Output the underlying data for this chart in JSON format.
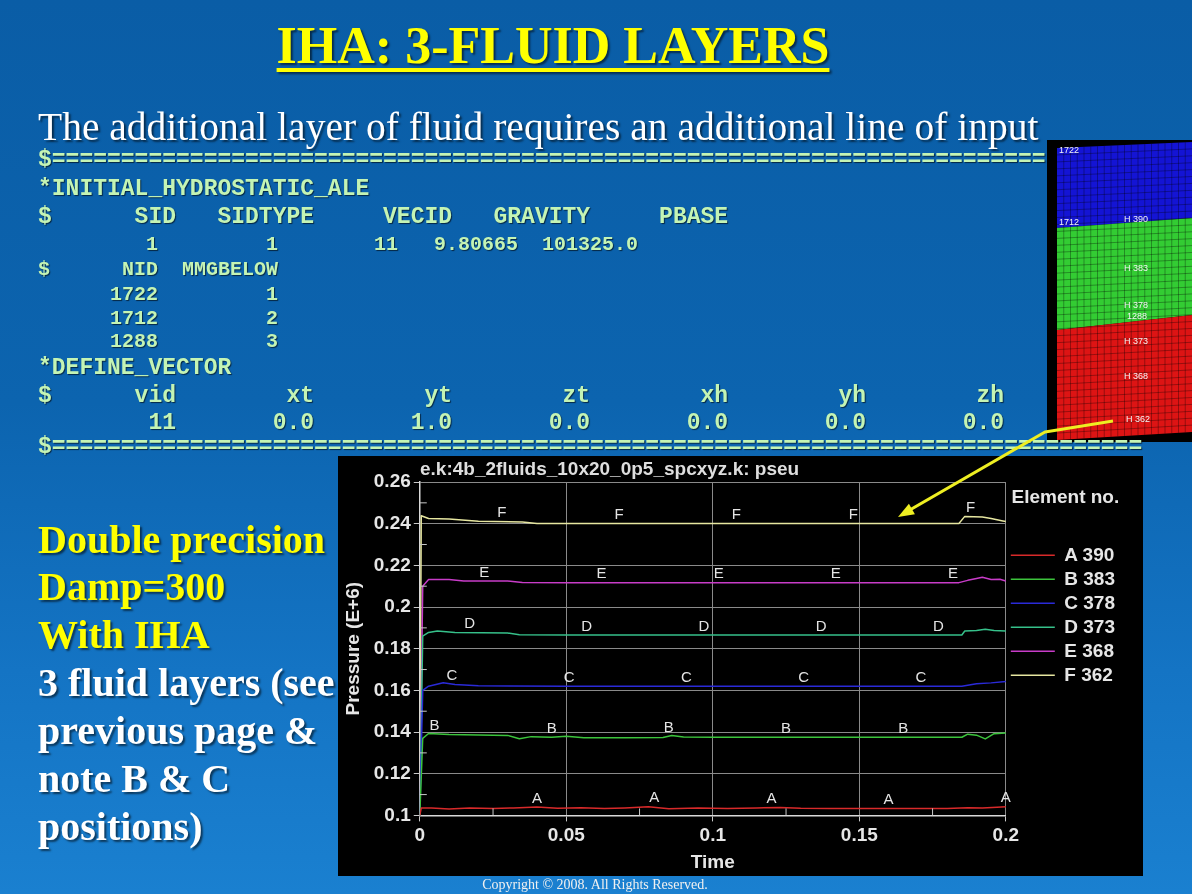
{
  "chart_data": {
    "type": "line",
    "title": "IHA: 3-FLUID LAYERS",
    "subtitle": "The additional layer of fluid requires an additional line of input",
    "xlabel": "Time",
    "ylabel": "Pressure (E+6)",
    "legend_title": "Element no.",
    "legend": "top right",
    "grid": true,
    "line_style": "solid",
    "xlim": [
      0,
      0.2
    ],
    "xticks": [
      0,
      {
        "value": 0.025,
        "label": null
      },
      0.05,
      {
        "value": 0.075,
        "label": null
      },
      0.1,
      {
        "value": 0.125,
        "label": null
      },
      0.15,
      {
        "value": 0.175,
        "label": null
      },
      0.2
    ],
    "ylim": [
      0.1,
      0.26
    ],
    "yticks": [
      0.1,
      {
        "value": 0.11,
        "label": null
      },
      0.12,
      {
        "value": 0.13,
        "label": null
      },
      0.14,
      {
        "value": 0.15,
        "label": null
      },
      0.16,
      {
        "value": 0.17,
        "label": null
      },
      0.18,
      {
        "value": 0.19,
        "label": null
      },
      0.2,
      {
        "value": 0.21,
        "label": null
      },
      0.22,
      {
        "value": 0.23,
        "label": null
      },
      0.24,
      {
        "value": 0.25,
        "label": null
      },
      0.26
    ],
    "series": [
      {
        "name": "A 390",
        "color": "#d82a2a",
        "x": [
          0,
          0.0005,
          0.004,
          0.01,
          0.017,
          0.025,
          0.032,
          0.04,
          0.047,
          0.055,
          0.063,
          0.07,
          0.078,
          0.085,
          0.095,
          0.105,
          0.115,
          0.123,
          0.13,
          0.14,
          0.15,
          0.16,
          0.17,
          0.18,
          0.187,
          0.192,
          0.197,
          0.2
        ],
        "values": [
          0.1,
          0.1035,
          0.1035,
          0.1031,
          0.1036,
          0.1033,
          0.1036,
          0.104,
          0.1034,
          0.1037,
          0.1033,
          0.1036,
          0.1041,
          0.1032,
          0.1035,
          0.1033,
          0.1036,
          0.1038,
          0.1034,
          0.1033,
          0.1033,
          0.1033,
          0.1033,
          0.1033,
          0.1037,
          0.1035,
          0.1039,
          0.1041
        ]
      },
      {
        "name": "B 383",
        "color": "#3cc43c",
        "x": [
          0,
          0.001,
          0.003,
          0.01,
          0.02,
          0.03,
          0.034,
          0.038,
          0.045,
          0.05,
          0.056,
          0.07,
          0.083,
          0.086,
          0.09,
          0.1,
          0.185,
          0.187,
          0.19,
          0.193,
          0.196,
          0.2
        ],
        "values": [
          0.1,
          0.137,
          0.1393,
          0.1388,
          0.1386,
          0.1384,
          0.1368,
          0.1378,
          0.1375,
          0.138,
          0.1373,
          0.1373,
          0.1374,
          0.1383,
          0.1376,
          0.1375,
          0.1375,
          0.139,
          0.1385,
          0.1367,
          0.1392,
          0.1396
        ]
      },
      {
        "name": "C 378",
        "color": "#2a2ad8",
        "x": [
          0,
          0.001,
          0.003,
          0.008,
          0.012,
          0.02,
          0.05,
          0.1,
          0.185,
          0.19,
          0.195,
          0.2
        ],
        "values": [
          0.1,
          0.16,
          0.162,
          0.1637,
          0.1628,
          0.1622,
          0.162,
          0.162,
          0.162,
          0.1632,
          0.1636,
          0.1643
        ]
      },
      {
        "name": "D 373",
        "color": "#36c08a",
        "x": [
          0,
          0.001,
          0.003,
          0.006,
          0.012,
          0.03,
          0.034,
          0.05,
          0.1,
          0.185,
          0.186,
          0.19,
          0.193,
          0.196,
          0.2
        ],
        "values": [
          0.1,
          0.186,
          0.1878,
          0.1885,
          0.1878,
          0.1875,
          0.1867,
          0.1866,
          0.1866,
          0.1866,
          0.1885,
          0.1887,
          0.1893,
          0.1887,
          0.1885
        ]
      },
      {
        "name": "E 368",
        "color": "#c83cc8",
        "x": [
          0,
          0.001,
          0.003,
          0.01,
          0.015,
          0.03,
          0.035,
          0.05,
          0.1,
          0.184,
          0.187,
          0.19,
          0.192,
          0.195,
          0.198,
          0.2
        ],
        "values": [
          0.1,
          0.21,
          0.2132,
          0.2132,
          0.2125,
          0.2125,
          0.2118,
          0.2117,
          0.2117,
          0.2117,
          0.2128,
          0.2137,
          0.2143,
          0.2132,
          0.2133,
          0.2125
        ]
      },
      {
        "name": "F 362",
        "color": "#e6e6a0",
        "x": [
          0,
          0.0005,
          0.003,
          0.01,
          0.02,
          0.035,
          0.04,
          0.1,
          0.184,
          0.186,
          0.192,
          0.195,
          0.199,
          0.2
        ],
        "values": [
          0.1,
          0.2438,
          0.2425,
          0.2423,
          0.2412,
          0.2408,
          0.2401,
          0.2401,
          0.2401,
          0.2435,
          0.2432,
          0.2425,
          0.2413,
          0.241
        ]
      }
    ],
    "annotations": [
      "e.k:4b_2fluids_10x20_0p5_spcxyz.k: pseu",
      "$========================================================================",
      "*INITIAL_HYDROSTATIC_ALE",
      "$      SID   SIDTYPE     VECID   GRAVITY     PBASE",
      "         1         1        11   9.80665  101325.0",
      "$      NID  MMGBELOW",
      "      1722         1",
      "      1712         2",
      "      1288         3",
      "*DEFINE_VECTOR",
      "$      vid        xt        yt        zt        xh        yh        zh",
      "        11       0.0       1.0       0.0       0.0       0.0       0.0",
      "$===============================================================================",
      "Double precision",
      "Damp=300",
      "With IHA",
      "3 fluid layers (see previous page & note B & C positions)",
      "1722",
      "1712",
      "H 390",
      "H 383",
      "H 378",
      "1288",
      "H 373",
      "H 368",
      "H 362",
      "Copyright © 2008. All Rights Reserved.",
      {
        "text": "A",
        "x": 0.04,
        "y": 0.104
      },
      {
        "text": "A",
        "x": 0.08,
        "y": 0.1041
      },
      {
        "text": "A",
        "x": 0.12,
        "y": 0.1037
      },
      {
        "text": "A",
        "x": 0.16,
        "y": 0.1033
      },
      {
        "text": "A",
        "x": 0.2,
        "y": 0.1041
      },
      {
        "text": "B",
        "x": 0.005,
        "y": 0.1388
      },
      {
        "text": "B",
        "x": 0.045,
        "y": 0.1375
      },
      {
        "text": "B",
        "x": 0.085,
        "y": 0.1381
      },
      {
        "text": "B",
        "x": 0.125,
        "y": 0.1375
      },
      {
        "text": "B",
        "x": 0.165,
        "y": 0.1375
      },
      {
        "text": "C",
        "x": 0.011,
        "y": 0.163
      },
      {
        "text": "C",
        "x": 0.051,
        "y": 0.162
      },
      {
        "text": "C",
        "x": 0.091,
        "y": 0.162
      },
      {
        "text": "C",
        "x": 0.131,
        "y": 0.162
      },
      {
        "text": "C",
        "x": 0.171,
        "y": 0.162
      },
      {
        "text": "D",
        "x": 0.017,
        "y": 0.1877
      },
      {
        "text": "D",
        "x": 0.057,
        "y": 0.1866
      },
      {
        "text": "D",
        "x": 0.097,
        "y": 0.1866
      },
      {
        "text": "D",
        "x": 0.137,
        "y": 0.1866
      },
      {
        "text": "D",
        "x": 0.177,
        "y": 0.1866
      },
      {
        "text": "E",
        "x": 0.022,
        "y": 0.2125
      },
      {
        "text": "E",
        "x": 0.062,
        "y": 0.2117
      },
      {
        "text": "E",
        "x": 0.102,
        "y": 0.2117
      },
      {
        "text": "E",
        "x": 0.142,
        "y": 0.2117
      },
      {
        "text": "E",
        "x": 0.182,
        "y": 0.2117
      },
      {
        "text": "F",
        "x": 0.028,
        "y": 0.241
      },
      {
        "text": "F",
        "x": 0.068,
        "y": 0.2401
      },
      {
        "text": "F",
        "x": 0.108,
        "y": 0.2401
      },
      {
        "text": "F",
        "x": 0.148,
        "y": 0.2401
      },
      {
        "text": "F",
        "x": 0.188,
        "y": 0.2434
      }
    ]
  }
}
